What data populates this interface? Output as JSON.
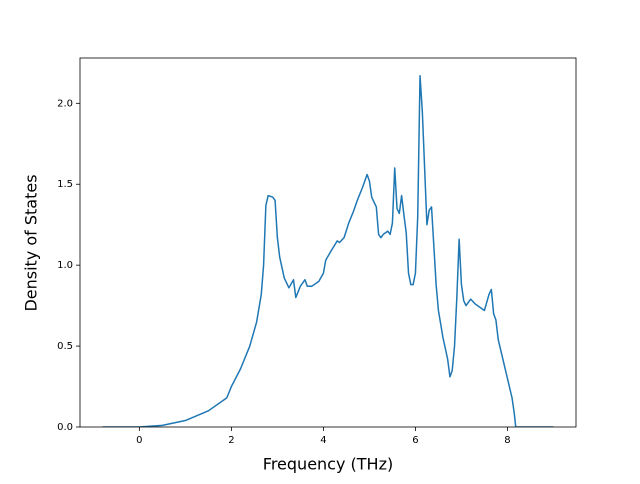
{
  "chart_data": {
    "type": "line",
    "xlabel": "Frequency (THz)",
    "ylabel": "Density of States",
    "x": [
      -0.8,
      0,
      0.5,
      1,
      1.5,
      1.9,
      2.0,
      2.2,
      2.4,
      2.55,
      2.65,
      2.7,
      2.75,
      2.8,
      2.9,
      2.95,
      3.0,
      3.05,
      3.15,
      3.25,
      3.35,
      3.4,
      3.5,
      3.6,
      3.65,
      3.75,
      3.9,
      4.0,
      4.05,
      4.15,
      4.3,
      4.35,
      4.45,
      4.55,
      4.65,
      4.75,
      4.85,
      4.95,
      5.0,
      5.05,
      5.15,
      5.2,
      5.25,
      5.3,
      5.4,
      5.45,
      5.5,
      5.55,
      5.6,
      5.65,
      5.7,
      5.75,
      5.8,
      5.85,
      5.9,
      5.95,
      6.0,
      6.05,
      6.1,
      6.15,
      6.25,
      6.3,
      6.35,
      6.4,
      6.45,
      6.5,
      6.6,
      6.7,
      6.75,
      6.8,
      6.85,
      6.9,
      6.95,
      7.0,
      7.05,
      7.1,
      7.15,
      7.2,
      7.3,
      7.5,
      7.6,
      7.65,
      7.7,
      7.75,
      7.8,
      7.9,
      8.0,
      8.1,
      8.15,
      8.18,
      9.0
    ],
    "series": [
      {
        "color": "#1f77b4",
        "values": [
          0,
          0,
          0.01,
          0.04,
          0.1,
          0.18,
          0.25,
          0.36,
          0.5,
          0.65,
          0.82,
          1.0,
          1.37,
          1.43,
          1.42,
          1.4,
          1.17,
          1.05,
          0.92,
          0.86,
          0.91,
          0.8,
          0.87,
          0.91,
          0.87,
          0.87,
          0.9,
          0.95,
          1.03,
          1.08,
          1.15,
          1.14,
          1.17,
          1.26,
          1.33,
          1.41,
          1.48,
          1.56,
          1.52,
          1.42,
          1.36,
          1.19,
          1.17,
          1.19,
          1.21,
          1.19,
          1.26,
          1.6,
          1.35,
          1.32,
          1.43,
          1.31,
          1.2,
          0.95,
          0.88,
          0.88,
          0.95,
          1.3,
          2.17,
          1.95,
          1.25,
          1.34,
          1.36,
          1.12,
          0.88,
          0.72,
          0.55,
          0.42,
          0.31,
          0.35,
          0.5,
          0.8,
          1.16,
          0.88,
          0.78,
          0.75,
          0.77,
          0.79,
          0.76,
          0.72,
          0.82,
          0.85,
          0.7,
          0.66,
          0.54,
          0.42,
          0.3,
          0.18,
          0.08,
          0,
          0
        ]
      }
    ],
    "xlim": [
      -1.29,
      9.49
    ],
    "ylim": [
      0,
      2.28
    ],
    "xticks": [
      0,
      2,
      4,
      6,
      8
    ],
    "yticks": [
      {
        "value": 0,
        "label": "0.0"
      },
      0.5,
      {
        "value": 1,
        "label": "1.0"
      },
      1.5,
      {
        "value": 2,
        "label": "2.0"
      }
    ],
    "grid": false
  }
}
